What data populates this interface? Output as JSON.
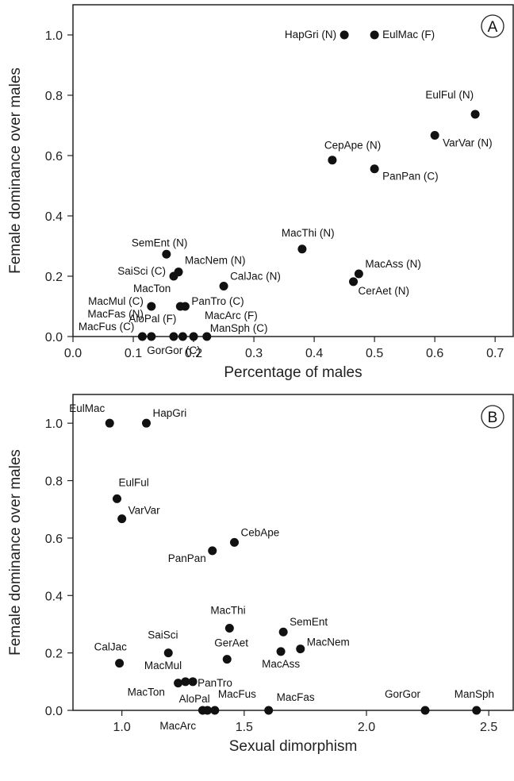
{
  "chart_data": [
    {
      "type": "scatter",
      "panel_label": "A",
      "xlabel": "Percentage of males",
      "ylabel": "Female dominance over males",
      "xlim": [
        0.0,
        0.73
      ],
      "ylim": [
        0.0,
        1.1
      ],
      "x_ticks": [
        "0.0",
        "0.1",
        "0.2",
        "0.3",
        "0.4",
        "0.5",
        "0.6",
        "0.7"
      ],
      "y_ticks": [
        "0.0",
        "0.2",
        "0.4",
        "0.6",
        "0.8",
        "1.0"
      ],
      "grid": false,
      "points": [
        {
          "label": "HapGri (N)",
          "x": 0.45,
          "y": 1.0
        },
        {
          "label": "EulMac (F)",
          "x": 0.5,
          "y": 1.0
        },
        {
          "label": "EulFul (N)",
          "x": 0.667,
          "y": 0.737
        },
        {
          "label": "VarVar (N)",
          "x": 0.6,
          "y": 0.667
        },
        {
          "label": "CepApe (N)",
          "x": 0.43,
          "y": 0.585
        },
        {
          "label": "PanPan (C)",
          "x": 0.5,
          "y": 0.556
        },
        {
          "label": "MacThi (N)",
          "x": 0.38,
          "y": 0.29
        },
        {
          "label": "SemEnt (N)",
          "x": 0.155,
          "y": 0.273
        },
        {
          "label": "MacNem (N)",
          "x": 0.175,
          "y": 0.214
        },
        {
          "label": "SaiSci (C)",
          "x": 0.167,
          "y": 0.2
        },
        {
          "label": "MacAss (N)",
          "x": 0.474,
          "y": 0.208
        },
        {
          "label": "CalJac (N)",
          "x": 0.25,
          "y": 0.167
        },
        {
          "label": "CerAet (N)",
          "x": 0.465,
          "y": 0.182
        },
        {
          "label": "MacMul (C)",
          "x": 0.13,
          "y": 0.1
        },
        {
          "label": "MacTon",
          "x": 0.178,
          "y": 0.1
        },
        {
          "label": "PanTro (C)",
          "x": 0.186,
          "y": 0.1
        },
        {
          "label": "MacFas (N)",
          "x": 0.13,
          "y": 0.0
        },
        {
          "label": "MacFus (C)",
          "x": 0.115,
          "y": 0.0
        },
        {
          "label": "AloPal (F)",
          "x": 0.182,
          "y": 0.0
        },
        {
          "label": "MacArc (F)",
          "x": 0.2,
          "y": 0.0
        },
        {
          "label": "ManSph (C)",
          "x": 0.222,
          "y": 0.0
        },
        {
          "label": "GorGor (C)",
          "x": 0.167,
          "y": 0.0
        }
      ]
    },
    {
      "type": "scatter",
      "panel_label": "B",
      "xlabel": "Sexual dimorphism",
      "ylabel": "Female dominance over males",
      "xlim": [
        0.8,
        2.6
      ],
      "ylim": [
        0.0,
        1.1
      ],
      "x_ticks": [
        "1.0",
        "1.5",
        "2.0",
        "2.5"
      ],
      "y_ticks": [
        "0.0",
        "0.2",
        "0.4",
        "0.6",
        "0.8",
        "1.0"
      ],
      "grid": false,
      "points": [
        {
          "label": "EulMac",
          "x": 0.95,
          "y": 1.0
        },
        {
          "label": "HapGri",
          "x": 1.1,
          "y": 1.0
        },
        {
          "label": "EulFul",
          "x": 0.98,
          "y": 0.737
        },
        {
          "label": "VarVar",
          "x": 1.0,
          "y": 0.667
        },
        {
          "label": "CebApe",
          "x": 1.46,
          "y": 0.585
        },
        {
          "label": "PanPan",
          "x": 1.37,
          "y": 0.556
        },
        {
          "label": "MacThi",
          "x": 1.44,
          "y": 0.286
        },
        {
          "label": "SemEnt",
          "x": 1.66,
          "y": 0.273
        },
        {
          "label": "MacNem",
          "x": 1.73,
          "y": 0.214
        },
        {
          "label": "MacAss",
          "x": 1.65,
          "y": 0.205
        },
        {
          "label": "SaiSci",
          "x": 1.19,
          "y": 0.2
        },
        {
          "label": "GerAet",
          "x": 1.43,
          "y": 0.178
        },
        {
          "label": "CalJac",
          "x": 0.99,
          "y": 0.164
        },
        {
          "label": "MacMul",
          "x": 1.26,
          "y": 0.1
        },
        {
          "label": "MacTon",
          "x": 1.23,
          "y": 0.095
        },
        {
          "label": "PanTro",
          "x": 1.29,
          "y": 0.1
        },
        {
          "label": "AloPal",
          "x": 1.35,
          "y": 0.0
        },
        {
          "label": "MacArc",
          "x": 1.33,
          "y": 0.0
        },
        {
          "label": "MacFus",
          "x": 1.38,
          "y": 0.0
        },
        {
          "label": "MacFas",
          "x": 1.6,
          "y": 0.0
        },
        {
          "label": "GorGor",
          "x": 2.24,
          "y": 0.0
        },
        {
          "label": "ManSph",
          "x": 2.45,
          "y": 0.0
        }
      ]
    }
  ]
}
